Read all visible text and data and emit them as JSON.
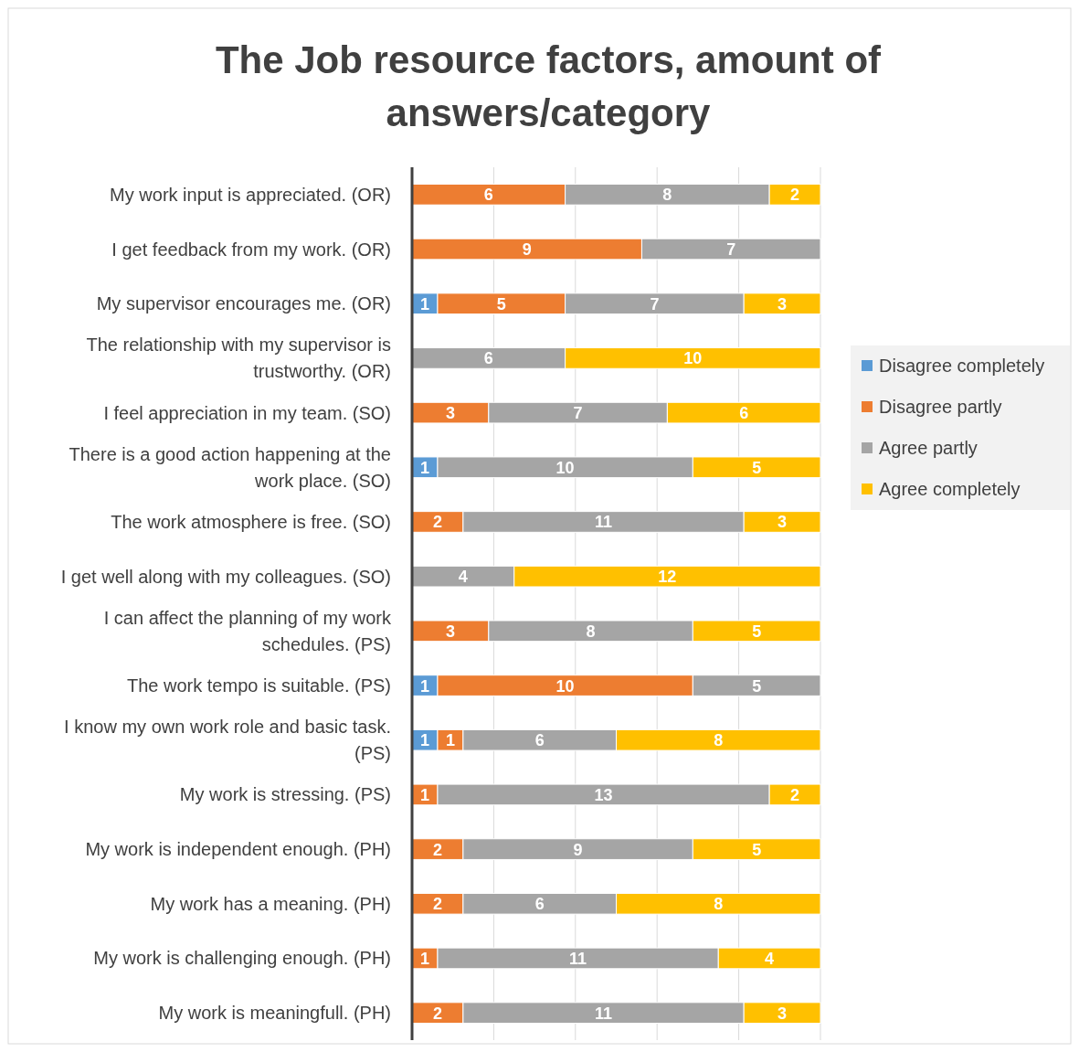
{
  "chart_data": {
    "type": "bar",
    "orientation": "horizontal",
    "stacked": true,
    "title": "The Job resource factors, amount of answers/category",
    "categories": [
      "My work input is appreciated. (OR)",
      "I get feedback from my work. (OR)",
      "My supervisor encourages me. (OR)",
      "The relationship with my supervisor is trustworthy. (OR)",
      "I feel appreciation in my team. (SO)",
      "There is a good action happening at the work place. (SO)",
      "The work atmosphere is free. (SO)",
      "I get well along with my colleagues. (SO)",
      "I can affect the planning of my work schedules. (PS)",
      "The work tempo is suitable. (PS)",
      "I know my own work role and basic task. (PS)",
      "My work is stressing. (PS)",
      "My work is independent enough. (PH)",
      "My work has a meaning. (PH)",
      "My work is challenging enough. (PH)",
      "My work is meaningfull. (PH)"
    ],
    "series": [
      {
        "name": "Disagree completely",
        "color": "#5b9bd5",
        "values": [
          0,
          0,
          1,
          0,
          0,
          1,
          0,
          0,
          0,
          1,
          1,
          0,
          0,
          0,
          0,
          0
        ],
        "value_labels": [
          null,
          null,
          "1",
          null,
          null,
          "1",
          null,
          null,
          null,
          "1",
          "1",
          null,
          null,
          null,
          null,
          null
        ]
      },
      {
        "name": "Disagree partly",
        "color": "#ed7d31",
        "values": [
          6,
          9,
          5,
          0,
          3,
          0,
          2,
          0,
          3,
          10,
          1,
          1,
          2,
          2,
          1,
          2
        ],
        "value_labels": [
          "6",
          "9",
          "5",
          null,
          "3",
          null,
          "2",
          null,
          "3",
          "10",
          "1",
          "1",
          "2",
          "2",
          "1",
          "2"
        ]
      },
      {
        "name": "Agree partly",
        "color": "#a5a5a5",
        "values": [
          8,
          7,
          7,
          6,
          7,
          10,
          11,
          4,
          8,
          5,
          6,
          13,
          9,
          6,
          11,
          11
        ],
        "value_labels": [
          "8",
          "7",
          "7",
          "6",
          "7",
          "10",
          "11",
          "4",
          "8",
          "5",
          "6",
          "13",
          "9",
          "6",
          "11",
          "11"
        ]
      },
      {
        "name": "Agree completely",
        "color": "#ffc000",
        "values": [
          2,
          0,
          3,
          10,
          6,
          5,
          3,
          12,
          5,
          0,
          8,
          2,
          5,
          8,
          4,
          3
        ],
        "value_labels": [
          "2",
          null,
          "3",
          "10",
          "6",
          "5",
          "3",
          "12",
          "5",
          null,
          "8",
          "2",
          "5",
          "8",
          "4",
          "3"
        ]
      }
    ],
    "xlim": [
      0,
      16
    ],
    "xticks": [
      {
        "value": 0,
        "label": null
      },
      {
        "value": 3.2,
        "label": null
      },
      {
        "value": 6.4,
        "label": null
      },
      {
        "value": 9.6,
        "label": null
      },
      {
        "value": 12.8,
        "label": null
      },
      {
        "value": 16,
        "label": null
      }
    ],
    "tick_labels": "y",
    "grid": "x",
    "legend": "right"
  }
}
